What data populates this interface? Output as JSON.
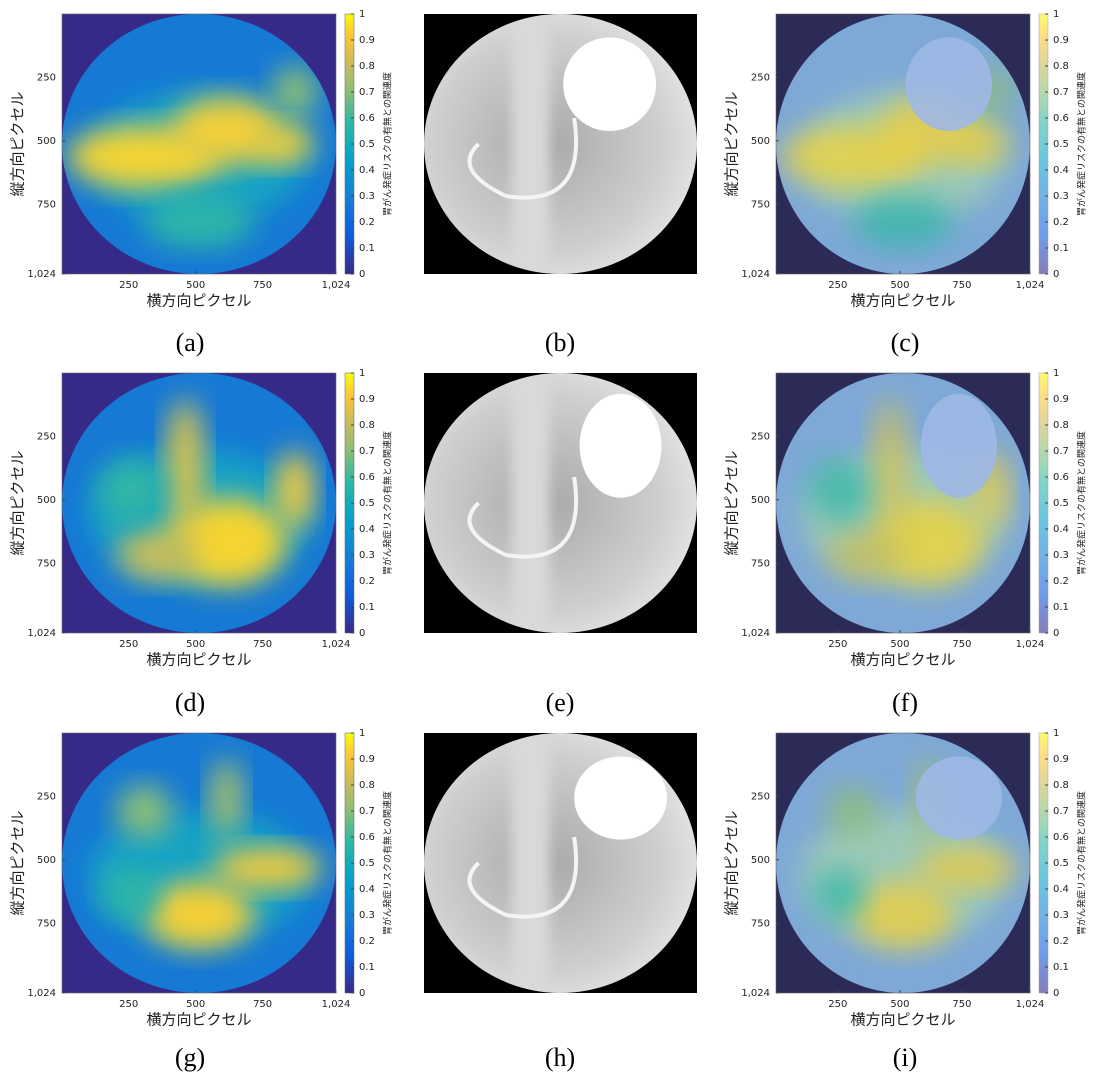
{
  "figure": {
    "x_label": "横方向ピクセル",
    "y_label": "縦方向ピクセル",
    "colorbar_label": "胃がん発症リスクの有無との関連度",
    "xlim": [
      1,
      1024
    ],
    "ylim": [
      1,
      1024
    ],
    "xticks": [
      250,
      500,
      750,
      {
        "value": 1024,
        "label": "1,024"
      }
    ],
    "yticks": [
      250,
      500,
      750,
      {
        "value": 1024,
        "label": "1,024"
      }
    ],
    "colorbar_lim": [
      0,
      1
    ],
    "colorbar_ticks": [
      0,
      0.1,
      0.2,
      0.3,
      0.4,
      0.5,
      0.6,
      0.7,
      0.8,
      0.9,
      1
    ],
    "panels": [
      {
        "caption": "(a)",
        "kind": "heatmap"
      },
      {
        "caption": "(b)",
        "kind": "xray"
      },
      {
        "caption": "(c)",
        "kind": "overlay"
      },
      {
        "caption": "(d)",
        "kind": "heatmap"
      },
      {
        "caption": "(e)",
        "kind": "xray"
      },
      {
        "caption": "(f)",
        "kind": "overlay"
      },
      {
        "caption": "(g)",
        "kind": "heatmap"
      },
      {
        "caption": "(h)",
        "kind": "xray"
      },
      {
        "caption": "(i)",
        "kind": "overlay"
      }
    ]
  }
}
